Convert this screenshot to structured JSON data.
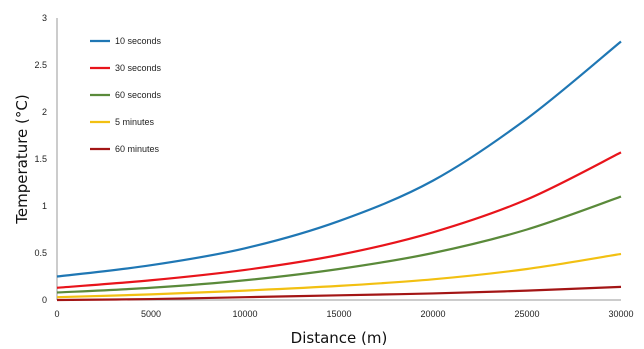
{
  "chart_data": {
    "type": "line",
    "xlabel": "Distance (m)",
    "ylabel": "Temperature  (°C)",
    "xlim": [
      0,
      30000
    ],
    "ylim": [
      0,
      3
    ],
    "xticks": [
      0,
      5000,
      10000,
      15000,
      20000,
      25000,
      30000
    ],
    "yticks": [
      0,
      0.5,
      1,
      1.5,
      2,
      2.5,
      3
    ],
    "ytick_labels": [
      "0",
      "0.5",
      "1",
      "1.5",
      "2",
      "2.5",
      "3"
    ],
    "grid": false,
    "legend_position": "top-left",
    "x": [
      0,
      5000,
      10000,
      15000,
      20000,
      25000,
      30000
    ],
    "series": [
      {
        "name": "10 seconds",
        "color": "#1f77b4",
        "values": [
          0.25,
          0.37,
          0.55,
          0.84,
          1.27,
          1.93,
          2.75
        ]
      },
      {
        "name": "30 seconds",
        "color": "#e8141b",
        "values": [
          0.13,
          0.21,
          0.32,
          0.48,
          0.72,
          1.07,
          1.57
        ]
      },
      {
        "name": "60 seconds",
        "color": "#5a8a3a",
        "values": [
          0.08,
          0.13,
          0.21,
          0.33,
          0.5,
          0.75,
          1.1
        ]
      },
      {
        "name": "5 minutes",
        "color": "#f2c012",
        "values": [
          0.03,
          0.06,
          0.1,
          0.15,
          0.22,
          0.33,
          0.49
        ]
      },
      {
        "name": "60 minutes",
        "color": "#a31515",
        "values": [
          0.0,
          0.01,
          0.03,
          0.05,
          0.07,
          0.1,
          0.14
        ]
      }
    ]
  }
}
